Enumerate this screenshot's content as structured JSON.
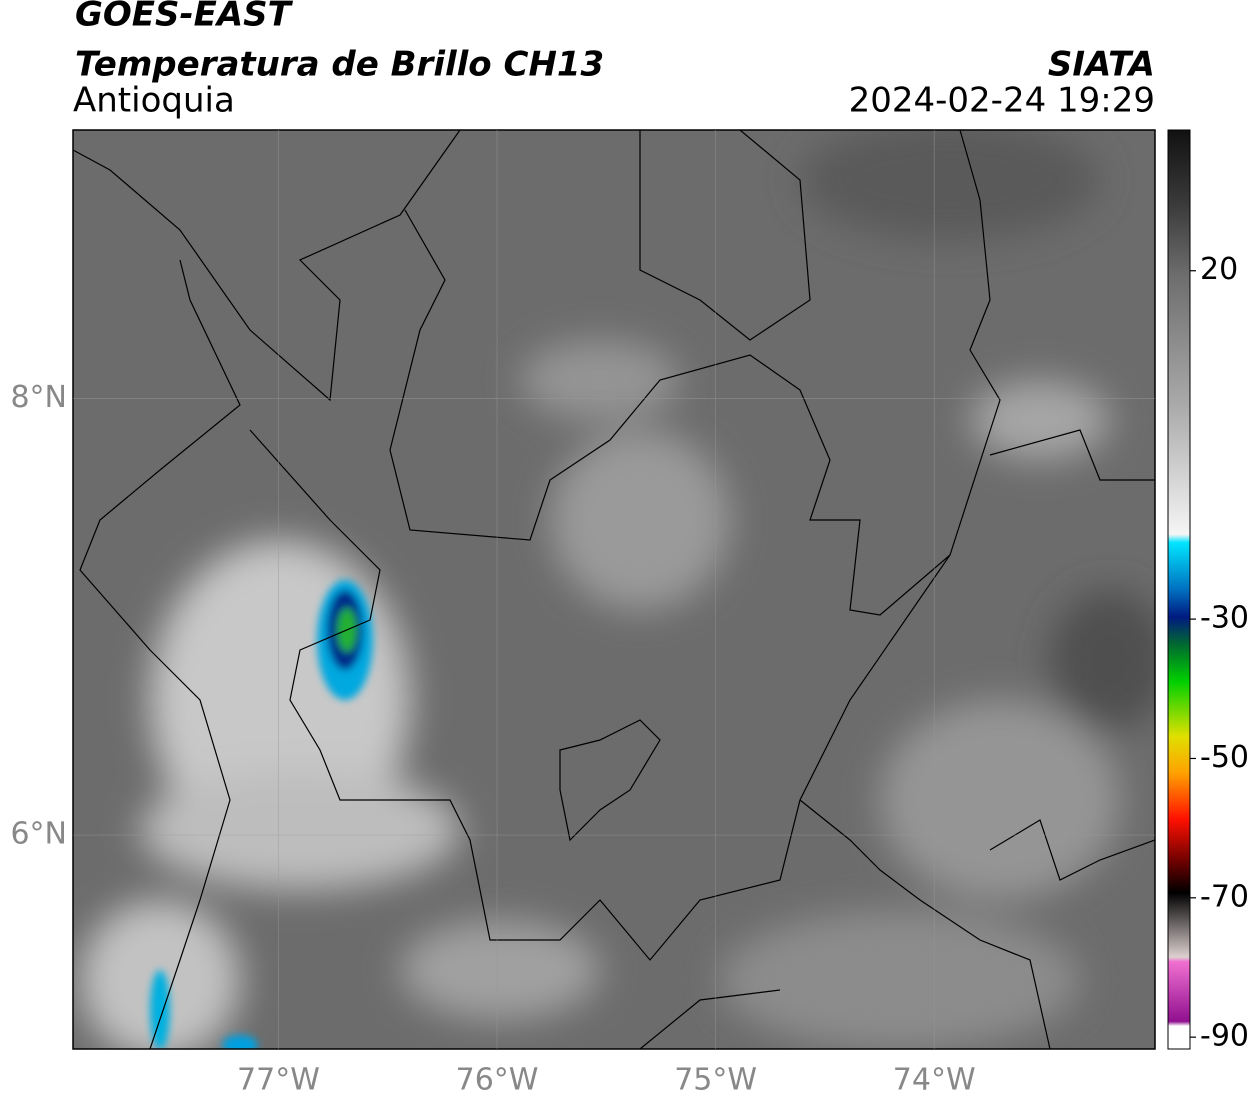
{
  "header": {
    "satellite": "GOES-EAST",
    "product": "Temperatura de Brillo CH13",
    "region": "Antioquia",
    "source": "SIATA",
    "datetime": "2024-02-24 19:29"
  },
  "map": {
    "lon_range": [
      -77.94,
      -72.99
    ],
    "lat_range": [
      5.02,
      9.23
    ],
    "lon_ticks": [
      {
        "value": -77,
        "label": "77°W"
      },
      {
        "value": -76,
        "label": "76°W"
      },
      {
        "value": -75,
        "label": "75°W"
      },
      {
        "value": -74,
        "label": "74°W"
      }
    ],
    "lat_ticks": [
      {
        "value": 8,
        "label": "8°N"
      },
      {
        "value": 6,
        "label": "6°N"
      }
    ]
  },
  "colorbar": {
    "range": [
      40.2,
      -91.7
    ],
    "ticks": [
      20,
      -30,
      -50,
      -70,
      -90
    ]
  }
}
